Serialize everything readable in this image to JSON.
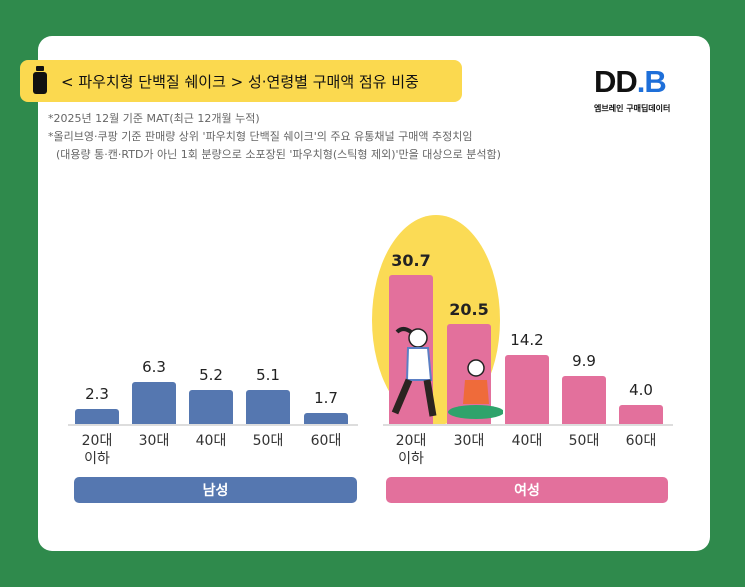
{
  "title": "< 파우치형 단백질 쉐이크 > 성·연령별 구매액 점유 비중",
  "logo": {
    "text": "DD.B",
    "subtitle": "엠브레인 구매딥데이터"
  },
  "notes": [
    "*2025년 12월 기준 MAT(최근 12개월 누적)",
    "*올리브영·쿠팡 기준 판매량 상위 '파우치형 단백질 쉐이크'의 주요 유통채널 구매액 추정치임",
    "(대용량 통·캔·RTD가 아닌 1회 분량으로 소포장된 '파우치형(스틱형 제외)'만을 대상으로 분석함)"
  ],
  "colors": {
    "male": "#5577b0",
    "female": "#e3709c",
    "highlight": "#fbdb55"
  },
  "chart_data": {
    "type": "bar",
    "unit": "%",
    "categories": [
      "20대\n이하",
      "30대",
      "40대",
      "50대",
      "60대"
    ],
    "series": [
      {
        "name": "남성",
        "values": [
          2.3,
          6.3,
          5.2,
          5.1,
          1.7
        ]
      },
      {
        "name": "여성",
        "values": [
          30.7,
          20.5,
          14.2,
          9.9,
          4.0
        ]
      }
    ]
  }
}
